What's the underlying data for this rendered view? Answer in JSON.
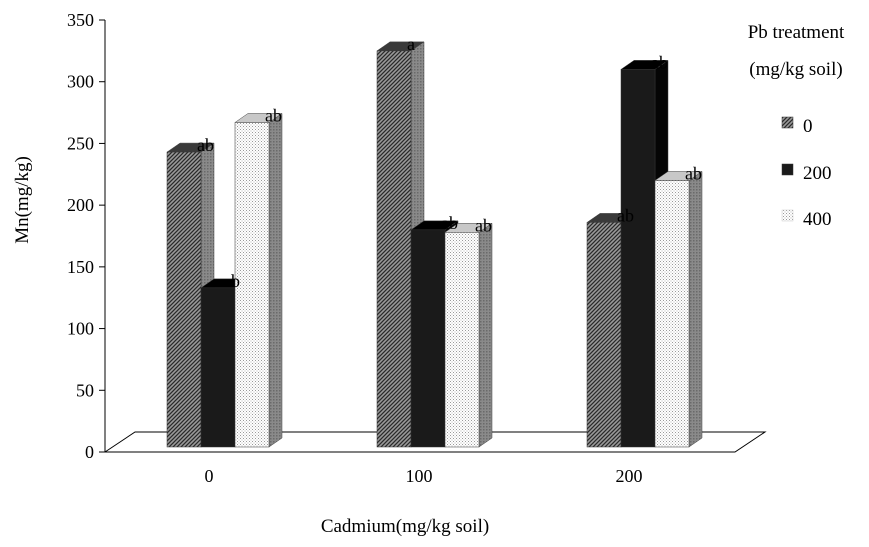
{
  "chart_data": {
    "type": "bar",
    "title": "",
    "xlabel": "Cadmium(mg/kg soil)",
    "ylabel": "Mn(mg/kg)",
    "ylim": [
      0,
      350
    ],
    "yticks": [
      "0",
      "50",
      "100",
      "150",
      "200",
      "250",
      "300",
      "350"
    ],
    "categories": [
      "0",
      "100",
      "200"
    ],
    "legend": {
      "title_line1": "Pb treatment",
      "title_line2": "(mg/kg soil)",
      "placement": "right"
    },
    "series": [
      {
        "name": "0",
        "values": [
          243,
          325,
          186
        ],
        "labels": [
          "ab",
          "a",
          "ab"
        ],
        "color": "#555555",
        "pattern": "hatch"
      },
      {
        "name": "200",
        "values": [
          133,
          180,
          310
        ],
        "labels": [
          "b",
          "ab",
          "ab"
        ],
        "color": "#1a1a1a",
        "pattern": "solid"
      },
      {
        "name": "400",
        "values": [
          267,
          178,
          220
        ],
        "labels": [
          "ab",
          "ab",
          "ab"
        ],
        "color": "#dddddd",
        "pattern": "dots"
      }
    ],
    "grid": false,
    "style": "3d-column"
  }
}
